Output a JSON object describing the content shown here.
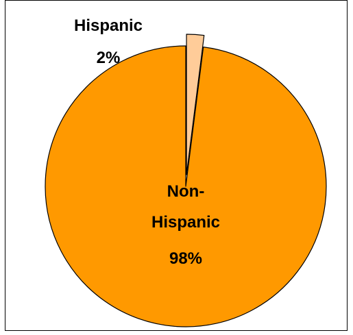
{
  "chart_data": {
    "type": "pie",
    "title": "",
    "slices": [
      {
        "name": "Hispanic",
        "label_lines": [
          "Hispanic"
        ],
        "percent_label": "2%",
        "value": 2,
        "color": "#FFCC99",
        "exploded": true
      },
      {
        "name": "Non-Hispanic",
        "label_lines": [
          "Non-",
          "Hispanic"
        ],
        "percent_label": "98%",
        "value": 98,
        "color": "#FF9900",
        "exploded": false
      }
    ],
    "legend": "none",
    "border_color": "#000000",
    "slice_outline_color": "#000000"
  }
}
